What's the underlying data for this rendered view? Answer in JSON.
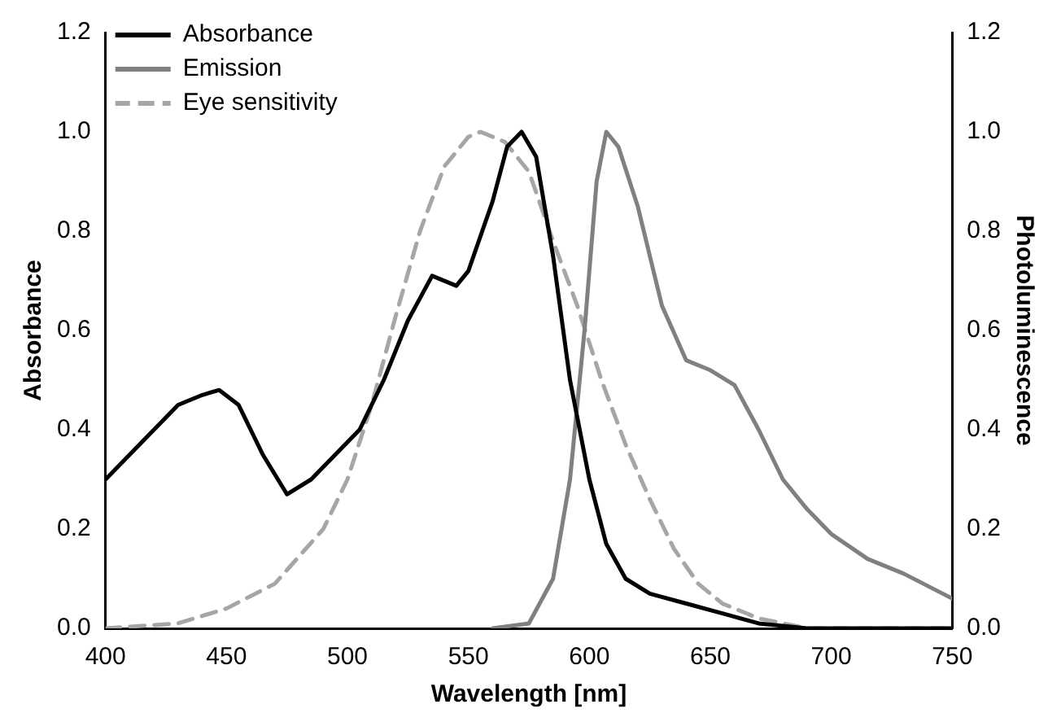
{
  "chart_data": {
    "type": "line",
    "xlabel": "Wavelength [nm]",
    "ylabel": "Absorbance",
    "y2label": "Photoluminescence",
    "xlim": [
      400,
      750
    ],
    "xticks": [
      400,
      450,
      500,
      550,
      600,
      650,
      700,
      750
    ],
    "ylim": [
      0,
      1.2
    ],
    "yticks": [
      {
        "value": 0,
        "label": "0.0"
      },
      0.2,
      0.4,
      0.6,
      0.8,
      {
        "value": 1,
        "label": "1.0"
      },
      1.2
    ],
    "y2lim": [
      0,
      1.2
    ],
    "y2ticks": [
      {
        "value": 0,
        "label": "0.0"
      },
      0.2,
      0.4,
      0.6,
      0.8,
      {
        "value": 1,
        "label": "1.0"
      },
      1.2
    ],
    "grid": false,
    "legend": "top left",
    "marker": "none",
    "series": [
      {
        "name": "Absorbance",
        "color": "#000000",
        "line_style": "solid",
        "x": [
          400,
          410,
          420,
          430,
          440,
          447,
          455,
          465,
          475,
          485,
          495,
          505,
          515,
          525,
          535,
          545,
          550,
          560,
          566,
          572,
          578,
          585,
          592,
          600,
          607,
          615,
          625,
          640,
          655,
          670,
          690,
          750
        ],
        "values": [
          0.3,
          0.35,
          0.4,
          0.45,
          0.47,
          0.48,
          0.45,
          0.35,
          0.27,
          0.3,
          0.35,
          0.4,
          0.5,
          0.62,
          0.71,
          0.69,
          0.72,
          0.86,
          0.97,
          1.0,
          0.95,
          0.75,
          0.5,
          0.3,
          0.17,
          0.1,
          0.07,
          0.05,
          0.03,
          0.01,
          0.0,
          0.0
        ]
      },
      {
        "name": "Emission",
        "color": "#808080",
        "line_style": "solid",
        "axis": "y2",
        "x": [
          560,
          575,
          585,
          592,
          598,
          603,
          607,
          612,
          620,
          630,
          640,
          650,
          660,
          670,
          680,
          690,
          700,
          715,
          730,
          750
        ],
        "values": [
          0.0,
          0.01,
          0.1,
          0.3,
          0.6,
          0.9,
          1.0,
          0.97,
          0.85,
          0.65,
          0.54,
          0.52,
          0.49,
          0.4,
          0.3,
          0.24,
          0.19,
          0.14,
          0.11,
          0.06
        ]
      },
      {
        "name": "Eye sensitivity",
        "color": "#a6a6a6",
        "line_style": "dashed",
        "x": [
          400,
          430,
          450,
          470,
          490,
          500,
          510,
          520,
          530,
          540,
          550,
          555,
          565,
          575,
          585,
          595,
          605,
          615,
          625,
          635,
          645,
          655,
          670,
          690,
          750
        ],
        "values": [
          0.0,
          0.01,
          0.04,
          0.09,
          0.2,
          0.3,
          0.45,
          0.63,
          0.8,
          0.93,
          0.99,
          1.0,
          0.98,
          0.92,
          0.78,
          0.65,
          0.5,
          0.37,
          0.26,
          0.16,
          0.09,
          0.05,
          0.02,
          0.0,
          0.0
        ]
      }
    ]
  }
}
